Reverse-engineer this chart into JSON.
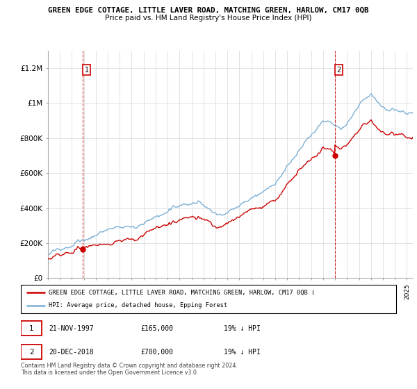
{
  "title": "GREEN EDGE COTTAGE, LITTLE LAVER ROAD, MATCHING GREEN, HARLOW, CM17 0QB",
  "subtitle": "Price paid vs. HM Land Registry's House Price Index (HPI)",
  "hpi_color": "#7bafd4",
  "price_color": "#cc0000",
  "background_color": "#ffffff",
  "grid_color": "#dddddd",
  "ylim": [
    0,
    1300000
  ],
  "yticks": [
    0,
    200000,
    400000,
    600000,
    800000,
    1000000,
    1200000
  ],
  "ytick_labels": [
    "£0",
    "£200K",
    "£400K",
    "£600K",
    "£800K",
    "£1M",
    "£1.2M"
  ],
  "sale1_date": 1997.9,
  "sale1_price": 165000,
  "sale1_label": "1",
  "sale2_date": 2018.97,
  "sale2_price": 700000,
  "sale2_label": "2",
  "legend_red_label": "GREEN EDGE COTTAGE, LITTLE LAVER ROAD, MATCHING GREEN, HARLOW, CM17 0QB (",
  "legend_blue_label": "HPI: Average price, detached house, Epping Forest",
  "footnote": "Contains HM Land Registry data © Crown copyright and database right 2024.\nThis data is licensed under the Open Government Licence v3.0.",
  "xmin": 1995.0,
  "xmax": 2025.5
}
